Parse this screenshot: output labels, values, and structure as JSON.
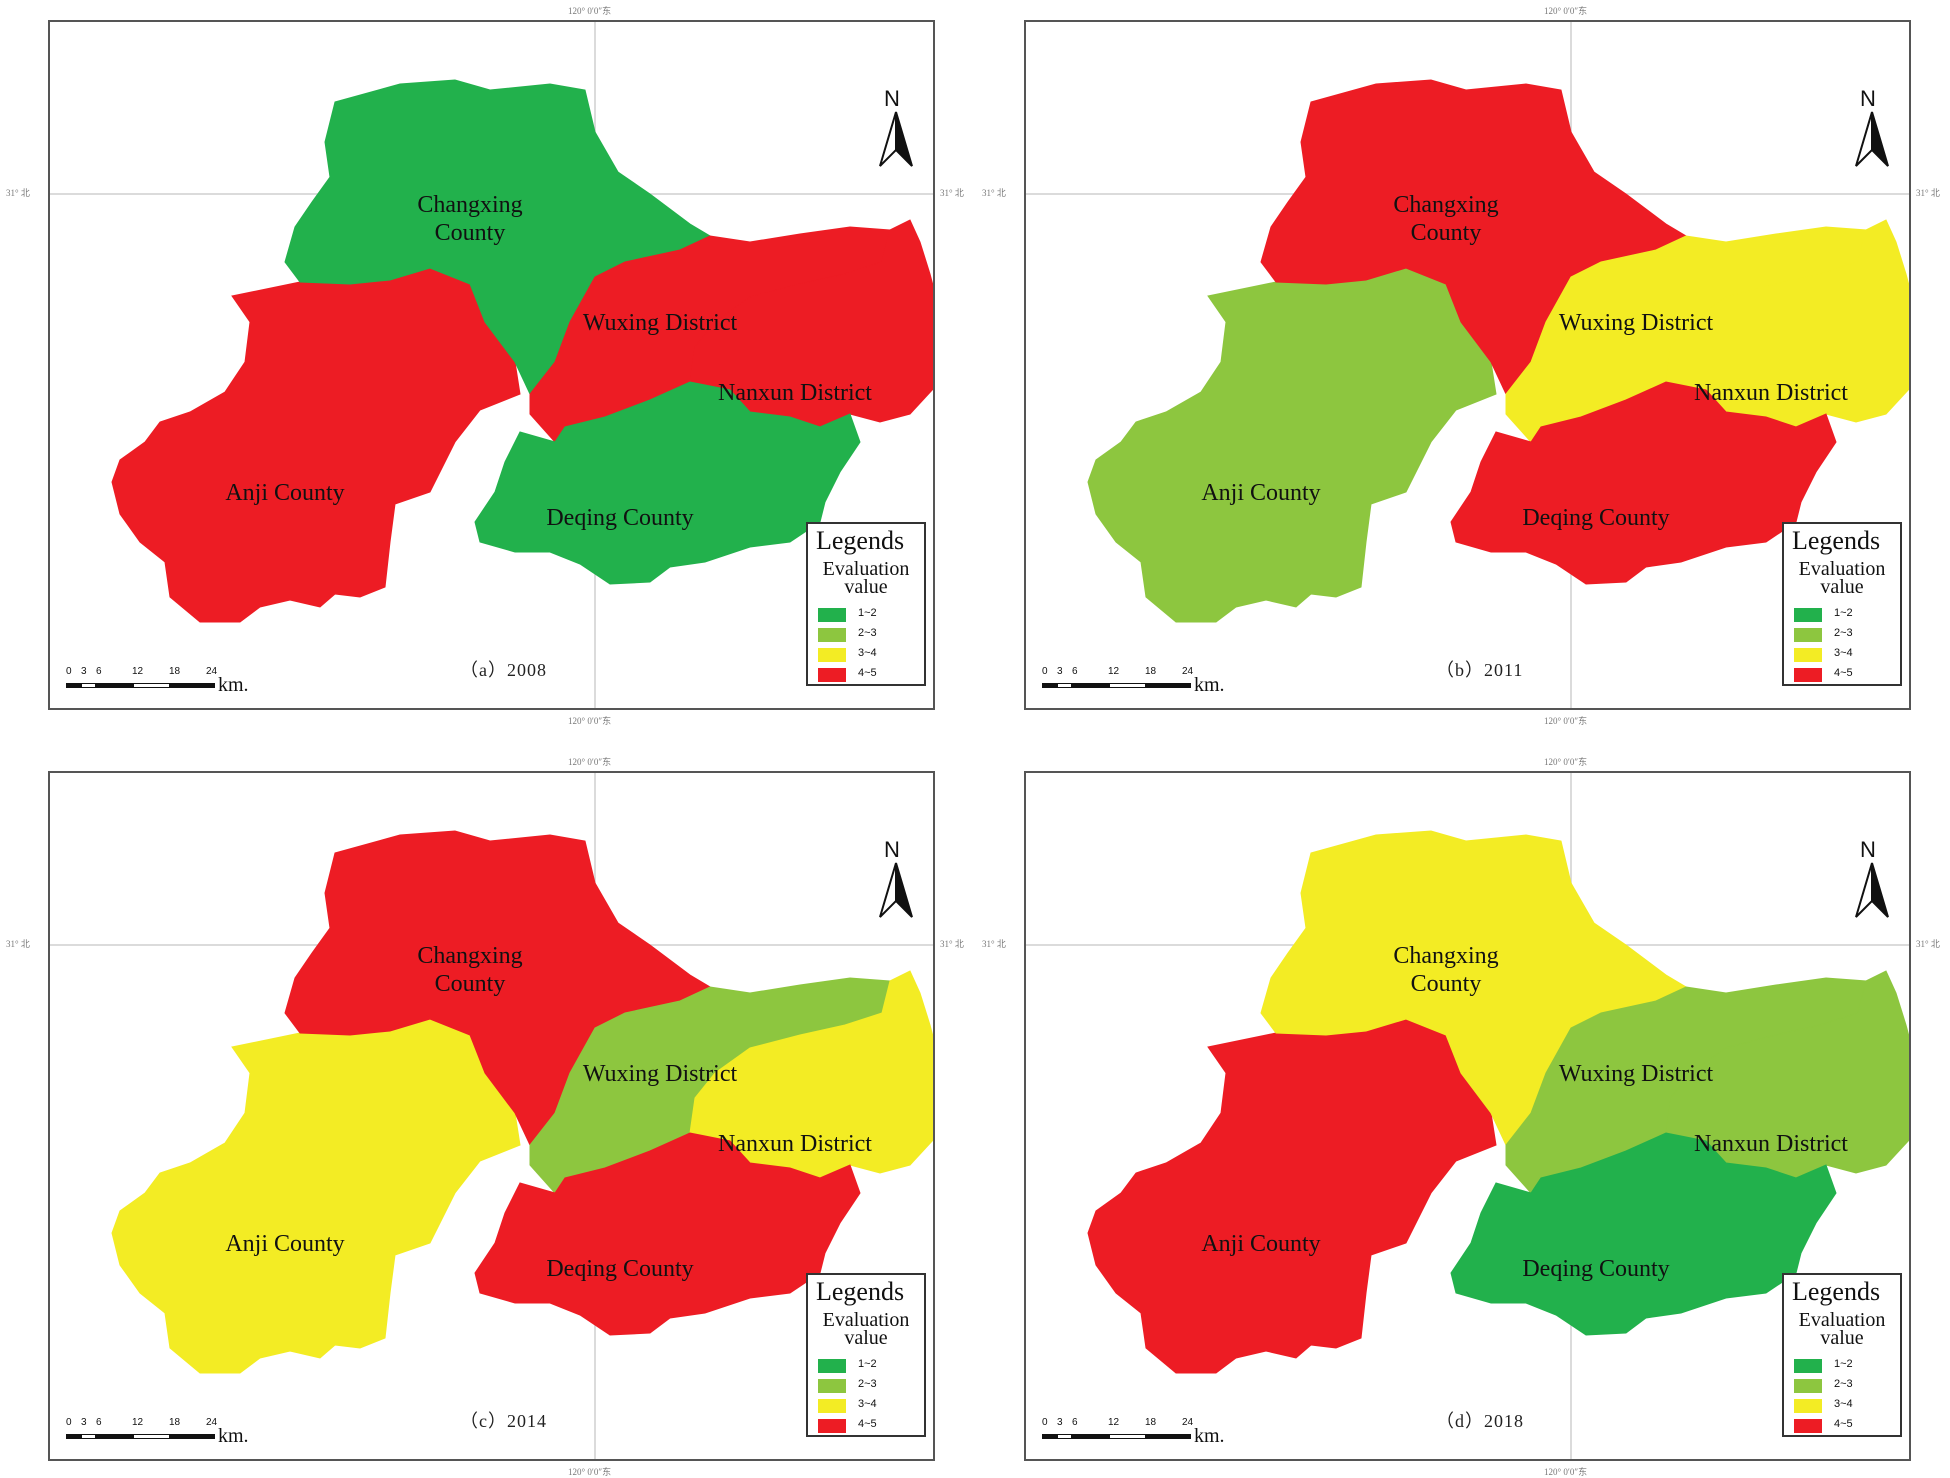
{
  "colors": {
    "dark_green": "#22b14c",
    "light_green": "#8dc63f",
    "yellow": "#f3ec24",
    "red": "#ed1c24"
  },
  "legend": {
    "title": "Legends",
    "subtitle_line1": "Evaluation",
    "subtitle_line2": "value",
    "items": [
      {
        "label": "1~2",
        "color": "#22b14c"
      },
      {
        "label": "2~3",
        "color": "#8dc63f"
      },
      {
        "label": "3~4",
        "color": "#f3ec24"
      },
      {
        "label": "4~5",
        "color": "#ed1c24"
      }
    ]
  },
  "north_label": "N",
  "scale": {
    "ticks": [
      "0",
      "3",
      "6",
      "12",
      "18",
      "24"
    ],
    "unit": "km."
  },
  "coord_labels": {
    "longitude": "120° 0′0″东",
    "latitude": "31° 北"
  },
  "region_names": {
    "changxing_line1": "Changxing",
    "changxing_line2": "County",
    "wuxing": "Wuxing District",
    "nanxun": "Nanxun District",
    "anji": "Anji County",
    "deqing": "Deqing County"
  },
  "panels": [
    {
      "caption": "（a）2008",
      "fills": {
        "changxing": "#22b14c",
        "wuxing": "#ed1c24",
        "nanxun": "#ed1c24",
        "anji": "#ed1c24",
        "deqing": "#22b14c"
      }
    },
    {
      "caption": "（b）2011",
      "fills": {
        "changxing": "#ed1c24",
        "wuxing": "#f3ec24",
        "nanxun": "#f3ec24",
        "anji": "#8dc63f",
        "deqing": "#ed1c24"
      }
    },
    {
      "caption": "（c）2014",
      "fills": {
        "changxing": "#ed1c24",
        "wuxing": "#8dc63f",
        "nanxun": "#f3ec24",
        "anji": "#f3ec24",
        "deqing": "#ed1c24"
      }
    },
    {
      "caption": "（d）2018",
      "fills": {
        "changxing": "#f3ec24",
        "wuxing": "#8dc63f",
        "nanxun": "#8dc63f",
        "anji": "#ed1c24",
        "deqing": "#22b14c"
      }
    }
  ]
}
